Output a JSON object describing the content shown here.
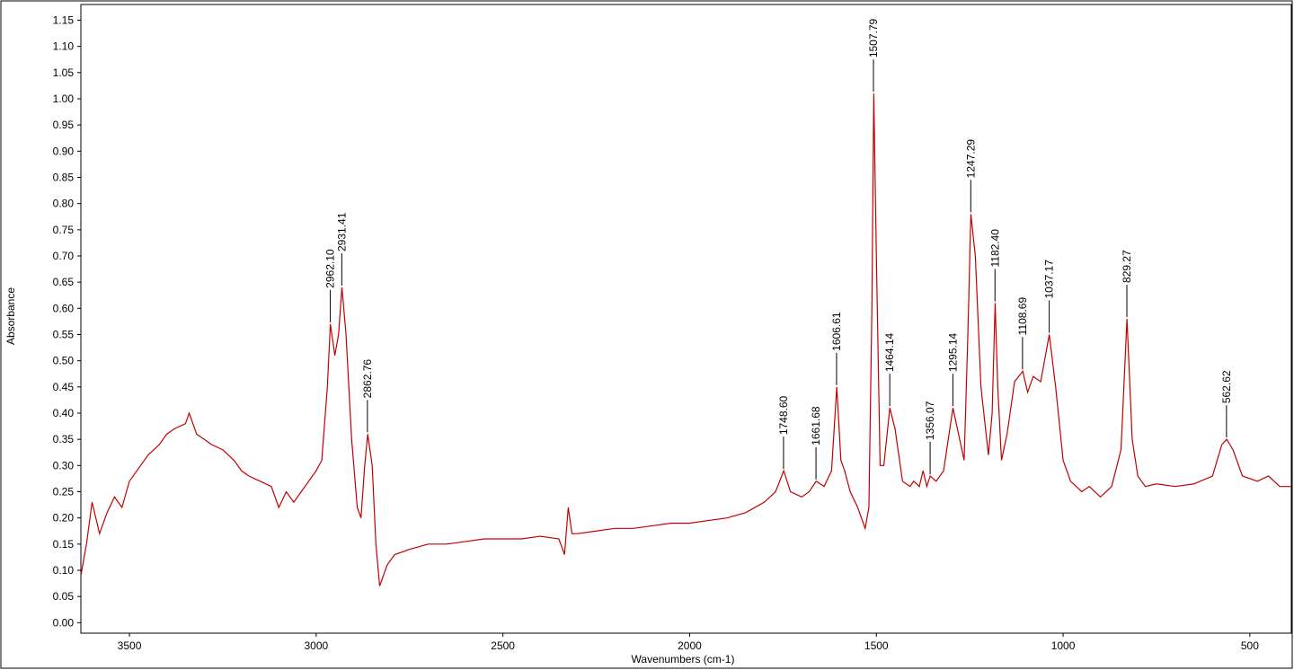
{
  "chart_data": {
    "type": "line",
    "xlabel": "Wavenumbers (cm-1)",
    "ylabel": "Absorbance",
    "xlim": [
      3630,
      389
    ],
    "ylim": [
      -0.02,
      1.18
    ],
    "xticks": [
      3500,
      3000,
      2500,
      2000,
      1500,
      1000,
      500
    ],
    "yticks": [
      {
        "value": 0,
        "label": "0.00"
      },
      {
        "value": 0.05,
        "label": "0.05"
      },
      {
        "value": 0.1,
        "label": "0.10"
      },
      {
        "value": 0.15,
        "label": "0.15"
      },
      {
        "value": 0.2,
        "label": "0.20"
      },
      {
        "value": 0.25,
        "label": "0.25"
      },
      {
        "value": 0.3,
        "label": "0.30"
      },
      {
        "value": 0.35,
        "label": "0.35"
      },
      {
        "value": 0.4,
        "label": "0.40"
      },
      {
        "value": 0.45,
        "label": "0.45"
      },
      {
        "value": 0.5,
        "label": "0.50"
      },
      {
        "value": 0.55,
        "label": "0.55"
      },
      {
        "value": 0.6,
        "label": "0.60"
      },
      {
        "value": 0.65,
        "label": "0.65"
      },
      {
        "value": 0.7,
        "label": "0.70"
      },
      {
        "value": 0.75,
        "label": "0.75"
      },
      {
        "value": 0.8,
        "label": "0.80"
      },
      {
        "value": 0.85,
        "label": "0.85"
      },
      {
        "value": 0.9,
        "label": "0.90"
      },
      {
        "value": 0.95,
        "label": "0.95"
      },
      {
        "value": 1,
        "label": "1.00"
      },
      {
        "value": 1.05,
        "label": "1.05"
      },
      {
        "value": 1.1,
        "label": "1.10"
      },
      {
        "value": 1.15,
        "label": "1.15"
      }
    ],
    "series": [
      {
        "color": "#c00000",
        "x": [
          3630,
          3615,
          3600,
          3580,
          3560,
          3540,
          3520,
          3500,
          3470,
          3450,
          3420,
          3400,
          3380,
          3350,
          3340,
          3320,
          3300,
          3280,
          3250,
          3220,
          3200,
          3180,
          3150,
          3120,
          3100,
          3080,
          3060,
          3040,
          3020,
          3000,
          2985,
          2970,
          2962,
          2950,
          2940,
          2931,
          2920,
          2905,
          2890,
          2880,
          2870,
          2862,
          2850,
          2840,
          2830,
          2810,
          2790,
          2750,
          2700,
          2650,
          2600,
          2550,
          2500,
          2450,
          2400,
          2350,
          2335,
          2325,
          2315,
          2300,
          2250,
          2200,
          2150,
          2100,
          2050,
          2000,
          1950,
          1900,
          1850,
          1800,
          1770,
          1748,
          1730,
          1700,
          1680,
          1661,
          1640,
          1620,
          1606,
          1595,
          1585,
          1570,
          1550,
          1530,
          1520,
          1512,
          1507,
          1500,
          1490,
          1480,
          1464,
          1450,
          1430,
          1410,
          1400,
          1385,
          1375,
          1365,
          1356,
          1340,
          1320,
          1295,
          1280,
          1265,
          1255,
          1247,
          1235,
          1220,
          1200,
          1190,
          1182,
          1175,
          1165,
          1150,
          1130,
          1108,
          1095,
          1080,
          1060,
          1037,
          1020,
          1000,
          980,
          950,
          930,
          900,
          870,
          845,
          829,
          815,
          800,
          780,
          750,
          700,
          650,
          600,
          575,
          562,
          545,
          520,
          480,
          450,
          420,
          389
        ],
        "values": [
          0.09,
          0.15,
          0.23,
          0.17,
          0.21,
          0.24,
          0.22,
          0.27,
          0.3,
          0.32,
          0.34,
          0.36,
          0.37,
          0.38,
          0.4,
          0.36,
          0.35,
          0.34,
          0.33,
          0.31,
          0.29,
          0.28,
          0.27,
          0.26,
          0.22,
          0.25,
          0.23,
          0.25,
          0.27,
          0.29,
          0.31,
          0.45,
          0.57,
          0.51,
          0.55,
          0.64,
          0.55,
          0.35,
          0.22,
          0.2,
          0.3,
          0.36,
          0.3,
          0.15,
          0.07,
          0.11,
          0.13,
          0.14,
          0.15,
          0.15,
          0.155,
          0.16,
          0.16,
          0.16,
          0.165,
          0.16,
          0.13,
          0.22,
          0.17,
          0.17,
          0.175,
          0.18,
          0.18,
          0.185,
          0.19,
          0.19,
          0.195,
          0.2,
          0.21,
          0.23,
          0.25,
          0.29,
          0.25,
          0.24,
          0.25,
          0.27,
          0.26,
          0.29,
          0.45,
          0.31,
          0.29,
          0.25,
          0.22,
          0.18,
          0.22,
          0.6,
          1.01,
          0.7,
          0.3,
          0.3,
          0.41,
          0.37,
          0.27,
          0.26,
          0.27,
          0.26,
          0.29,
          0.26,
          0.28,
          0.27,
          0.29,
          0.41,
          0.36,
          0.31,
          0.55,
          0.78,
          0.7,
          0.45,
          0.32,
          0.4,
          0.61,
          0.45,
          0.31,
          0.36,
          0.46,
          0.48,
          0.44,
          0.47,
          0.46,
          0.55,
          0.45,
          0.31,
          0.27,
          0.25,
          0.26,
          0.24,
          0.26,
          0.33,
          0.58,
          0.35,
          0.28,
          0.26,
          0.265,
          0.26,
          0.265,
          0.28,
          0.34,
          0.35,
          0.33,
          0.28,
          0.27,
          0.28,
          0.26,
          0.26
        ]
      }
    ],
    "annotations": [
      {
        "label": "2962.10",
        "x": 2962.1,
        "y": 0.57
      },
      {
        "label": "2931.41",
        "x": 2931.41,
        "y": 0.64
      },
      {
        "label": "2862.76",
        "x": 2862.76,
        "y": 0.36
      },
      {
        "label": "1748.60",
        "x": 1748.6,
        "y": 0.29
      },
      {
        "label": "1661.68",
        "x": 1661.68,
        "y": 0.27
      },
      {
        "label": "1606.61",
        "x": 1606.61,
        "y": 0.45
      },
      {
        "label": "1507.79",
        "x": 1507.79,
        "y": 1.01
      },
      {
        "label": "1464.14",
        "x": 1464.14,
        "y": 0.41
      },
      {
        "label": "1356.07",
        "x": 1356.07,
        "y": 0.28
      },
      {
        "label": "1295.14",
        "x": 1295.14,
        "y": 0.41
      },
      {
        "label": "1247.29",
        "x": 1247.29,
        "y": 0.78
      },
      {
        "label": "1182.40",
        "x": 1182.4,
        "y": 0.61
      },
      {
        "label": "1108.69",
        "x": 1108.69,
        "y": 0.48
      },
      {
        "label": "1037.17",
        "x": 1037.17,
        "y": 0.55
      },
      {
        "label": "829.27",
        "x": 829.27,
        "y": 0.58
      },
      {
        "label": "562.62",
        "x": 562.62,
        "y": 0.35
      }
    ]
  }
}
